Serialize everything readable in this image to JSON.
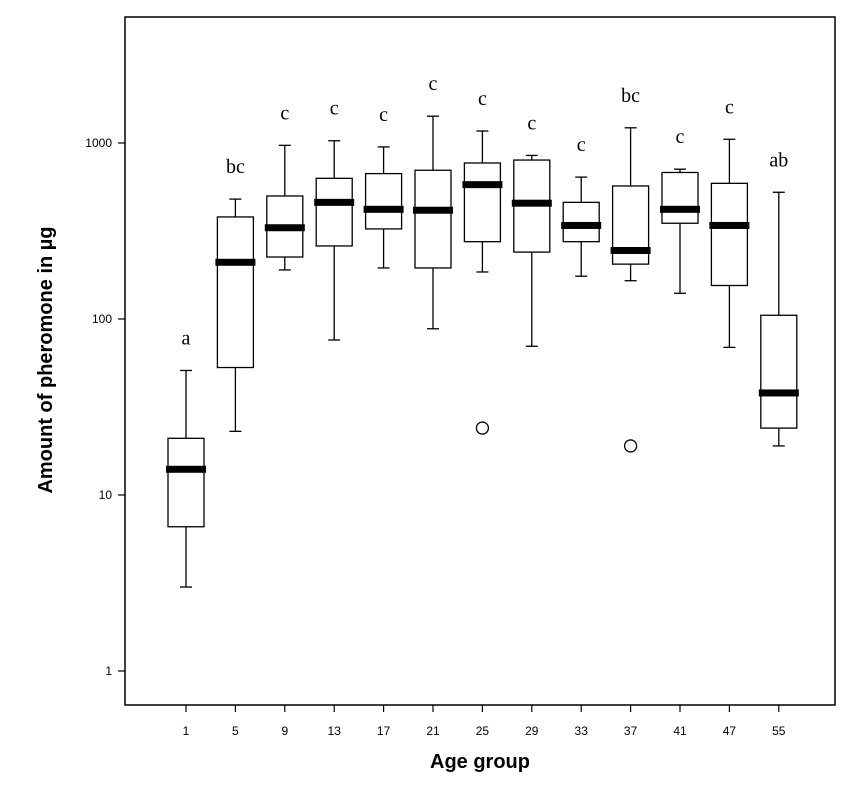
{
  "chart_data": {
    "type": "box",
    "title": "",
    "xlabel": "Age group",
    "ylabel": "Amount of pheromone in µg",
    "yscale": "log",
    "ylim": [
      0.5,
      6000
    ],
    "y_ticks": [
      {
        "value": 1,
        "label": "1"
      },
      {
        "value": 10,
        "label": "10"
      },
      {
        "value": 100,
        "label": "100"
      },
      {
        "value": 1000,
        "label": "1000"
      }
    ],
    "grid": false,
    "legend": "none",
    "categories": [
      "1",
      "5",
      "9",
      "13",
      "17",
      "21",
      "25",
      "29",
      "33",
      "37",
      "41",
      "47",
      "55"
    ],
    "boxes": [
      {
        "min": 3,
        "q1": 6.6,
        "median": 14,
        "q3": 21,
        "max": 51,
        "outliers": [],
        "letter": "a"
      },
      {
        "min": 23,
        "q1": 53,
        "median": 210,
        "q3": 380,
        "max": 480,
        "outliers": [],
        "letter": "bc"
      },
      {
        "min": 190,
        "q1": 225,
        "median": 330,
        "q3": 500,
        "max": 970,
        "outliers": [],
        "letter": "c"
      },
      {
        "min": 76,
        "q1": 260,
        "median": 460,
        "q3": 630,
        "max": 1030,
        "outliers": [],
        "letter": "c"
      },
      {
        "min": 195,
        "q1": 325,
        "median": 420,
        "q3": 670,
        "max": 950,
        "outliers": [],
        "letter": "c"
      },
      {
        "min": 88,
        "q1": 195,
        "median": 415,
        "q3": 700,
        "max": 1420,
        "outliers": [],
        "letter": "c"
      },
      {
        "min": 185,
        "q1": 275,
        "median": 580,
        "q3": 770,
        "max": 1170,
        "outliers": [
          24
        ],
        "letter": "c"
      },
      {
        "min": 70,
        "q1": 240,
        "median": 455,
        "q3": 800,
        "max": 850,
        "outliers": [],
        "letter": "c"
      },
      {
        "min": 175,
        "q1": 275,
        "median": 340,
        "q3": 460,
        "max": 640,
        "outliers": [],
        "letter": "c"
      },
      {
        "min": 165,
        "q1": 205,
        "median": 245,
        "q3": 570,
        "max": 1220,
        "outliers": [
          19
        ],
        "letter": "bc"
      },
      {
        "min": 140,
        "q1": 350,
        "median": 420,
        "q3": 680,
        "max": 710,
        "outliers": [],
        "letter": "c"
      },
      {
        "min": 69,
        "q1": 155,
        "median": 340,
        "q3": 590,
        "max": 1050,
        "outliers": [],
        "letter": "c"
      },
      {
        "min": 19,
        "q1": 24,
        "median": 38,
        "q3": 105,
        "max": 525,
        "outliers": [],
        "letter": "ab"
      }
    ],
    "colors": {
      "box_stroke": "#000000",
      "median": "#000000",
      "background": "#ffffff"
    }
  }
}
